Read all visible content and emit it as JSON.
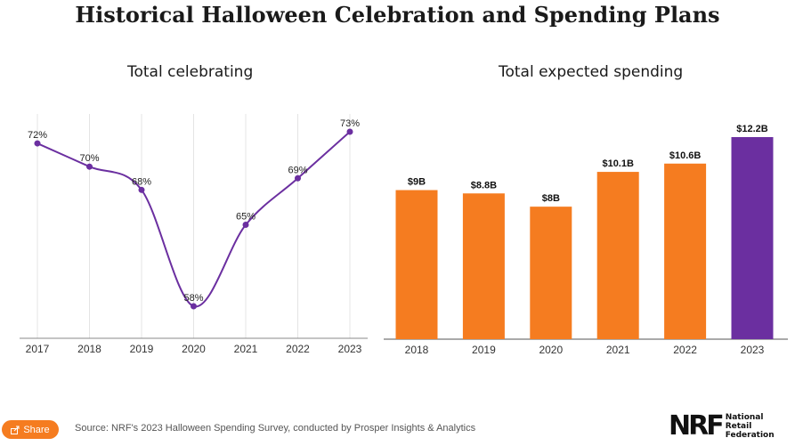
{
  "title": "Historical Halloween Celebration and Spending Plans",
  "share_label": "Share",
  "source": "Source: NRF's 2023 Halloween Spending Survey, conducted by Prosper Insights & Analytics",
  "logo": {
    "wordmark": "NRF",
    "name_lines": [
      "National",
      "Retail",
      "Federation"
    ]
  },
  "colors": {
    "line": "#6b2fa0",
    "bar": "#f57c20",
    "highlight_bar": "#6b2fa0",
    "share_button": "#f57c20"
  },
  "chart_data": [
    {
      "type": "line",
      "title": "Total celebrating",
      "categories": [
        "2017",
        "2018",
        "2019",
        "2020",
        "2021",
        "2022",
        "2023"
      ],
      "values": [
        72,
        70,
        68,
        58,
        65,
        69,
        73
      ],
      "value_labels": [
        "72%",
        "70%",
        "68%",
        "58%",
        "65%",
        "69%",
        "73%"
      ],
      "unit": "%",
      "ylim": [
        56,
        75
      ],
      "grid": "vertical"
    },
    {
      "type": "bar",
      "title": "Total expected spending",
      "categories": [
        "2018",
        "2019",
        "2020",
        "2021",
        "2022",
        "2023"
      ],
      "values": [
        9,
        8.8,
        8,
        10.1,
        10.6,
        12.2
      ],
      "value_labels": [
        "$9B",
        "$8.8B",
        "$8B",
        "$10.1B",
        "$10.6B",
        "$12.2B"
      ],
      "unit": "$B",
      "ylim": [
        0,
        12.5
      ],
      "highlight": "2023"
    }
  ]
}
